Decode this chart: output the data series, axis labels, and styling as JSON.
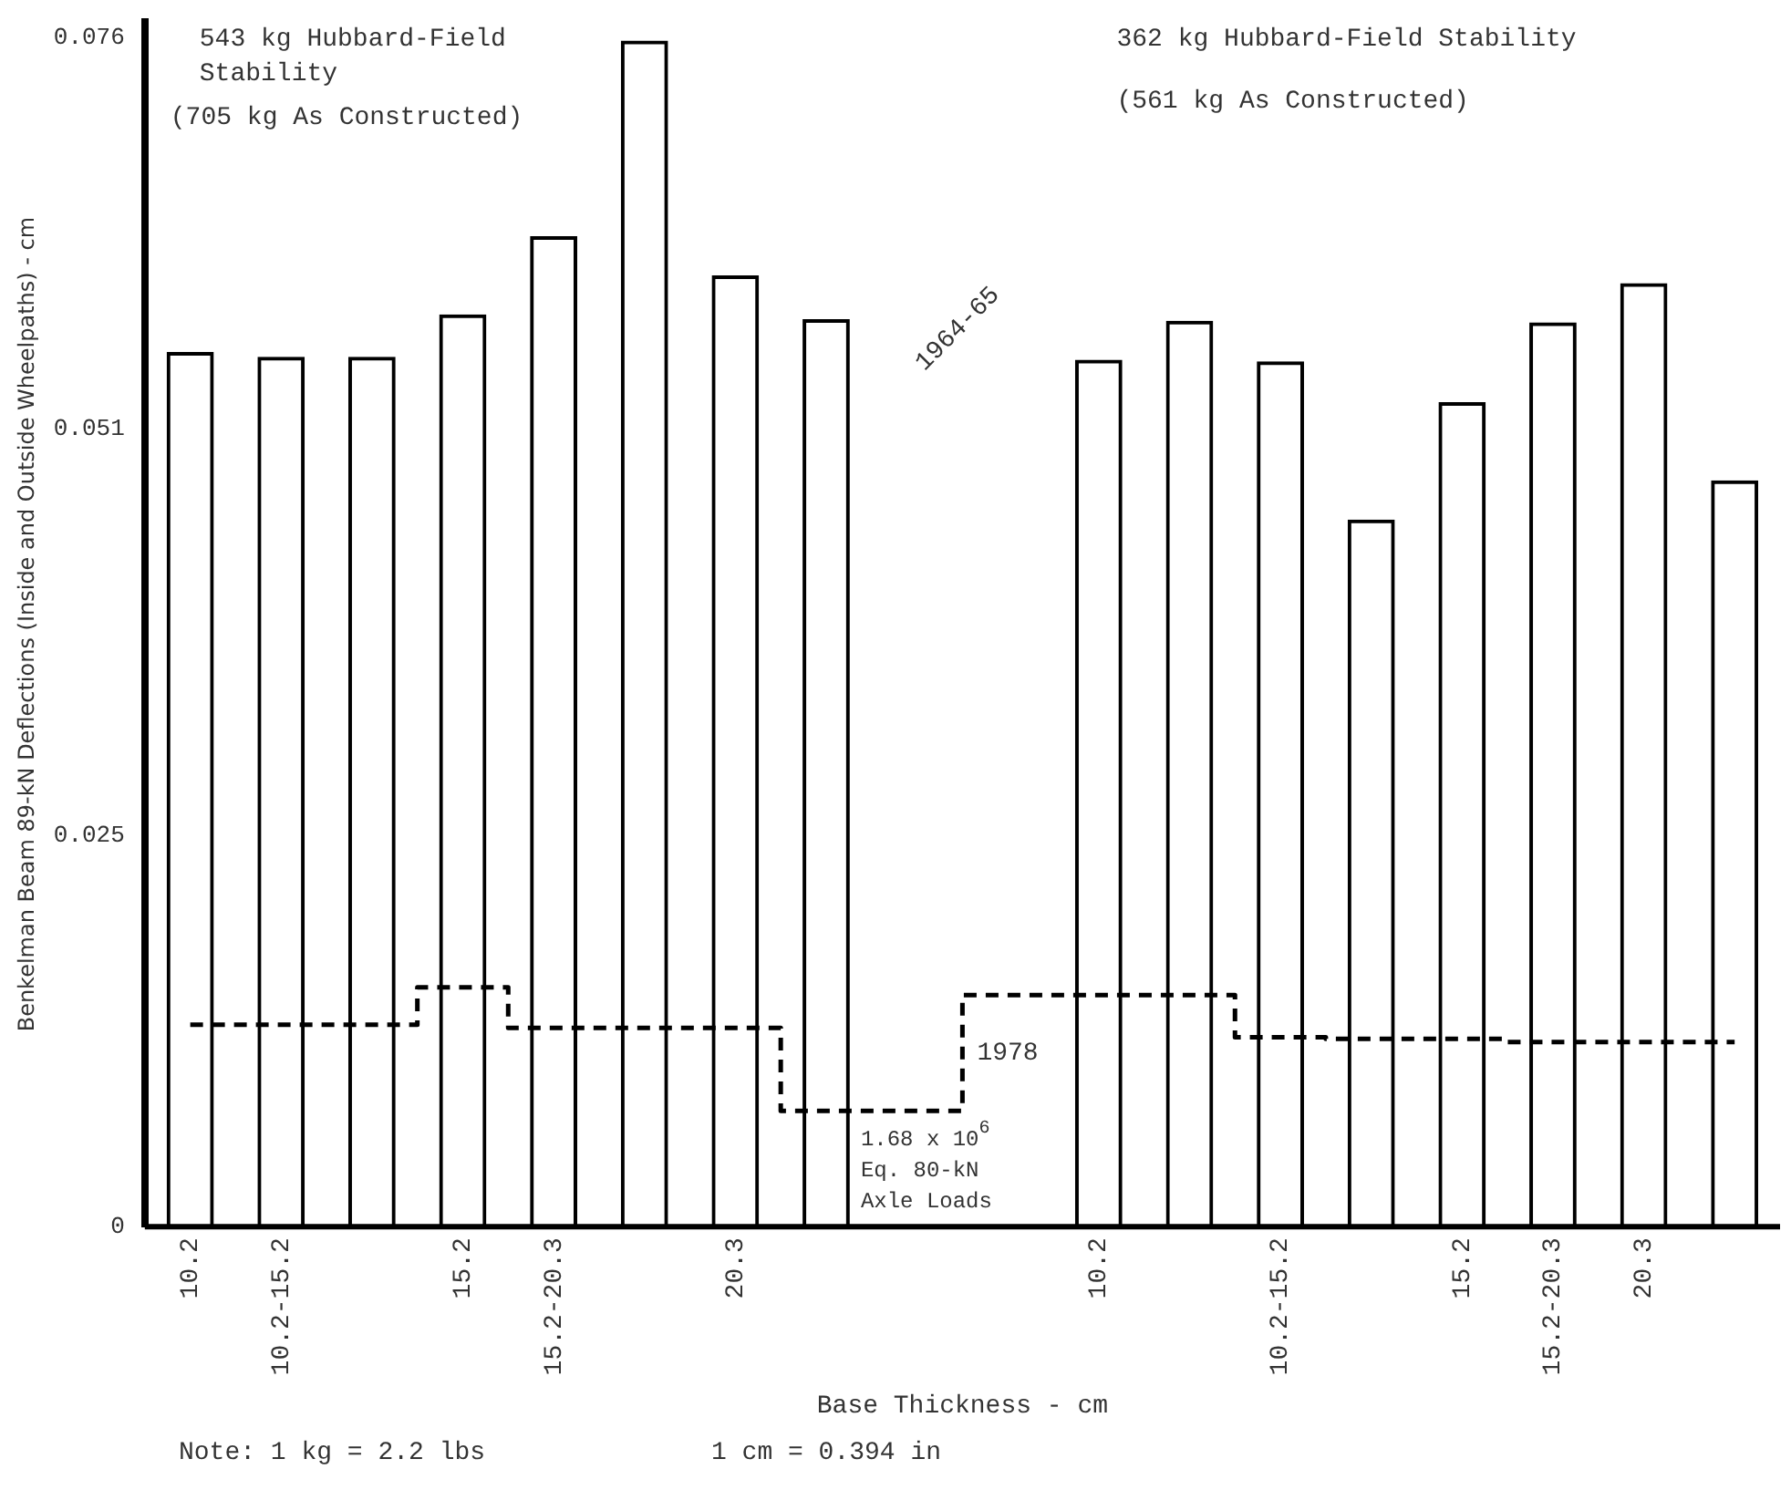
{
  "chart_data": {
    "type": "bar",
    "xlabel": "Base Thickness - cm",
    "ylabel": "Benkelman Beam 89-kN Deflections (Inside and Outside Wheelpaths) - cm",
    "categories": [
      "10.2",
      "10.2-15.2",
      null,
      "15.2",
      "15.2-20.3",
      null,
      "20.3",
      null,
      null,
      null,
      "10.2",
      null,
      "10.2-15.2",
      null,
      "15.2",
      "15.2-20.3",
      "20.3",
      null
    ],
    "series": [
      {
        "name": "1964-65",
        "color": "#000000",
        "values": [
          0.0559,
          0.0556,
          0.0556,
          0.0583,
          0.0633,
          0.0758,
          0.0608,
          0.058,
          null,
          null,
          0.0554,
          0.0579,
          0.0553,
          0.0452,
          0.0527,
          0.0578,
          0.0603,
          0.0477
        ]
      },
      {
        "name": "1978",
        "type": "step",
        "color": "#000000",
        "line_style": "dashed",
        "marker": "none",
        "values": [
          0.0129,
          0.0129,
          0.0129,
          0.0153,
          0.0127,
          0.0127,
          0.0127,
          0.0074,
          null,
          null,
          0.0148,
          0.0148,
          0.0121,
          0.012,
          0.012,
          0.0118,
          0.0118,
          0.0118
        ]
      }
    ],
    "ylim": [
      0,
      0.077
    ],
    "yticks": [
      0,
      0.025,
      0.051,
      0.076
    ],
    "grid": false,
    "legend": false,
    "annotations": [
      "543 kg Hubbard-Field Stability",
      "(705 kg As Constructed)",
      "362 kg Hubbard-Field Stability",
      "(561 kg As Constructed)",
      "1.68 x 10$^{6}$ Eq. 80-kN Axle Loads",
      "Note: 1 kg = 2.2 lbs",
      "1 cm = 0.394 in"
    ]
  }
}
